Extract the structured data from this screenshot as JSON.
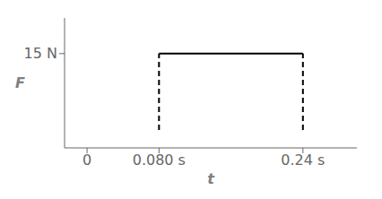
{
  "chart_data": {
    "type": "line",
    "title": "",
    "xlabel": "t",
    "ylabel": "F",
    "series": [
      {
        "x": [
          0.08,
          0.24
        ],
        "values": [
          15,
          15
        ],
        "color": "#000000",
        "line_style": "solid"
      },
      {
        "x": [
          0.08,
          0.08
        ],
        "values": [
          0,
          15
        ],
        "color": "#000000",
        "line_style": "dashed"
      },
      {
        "x": [
          0.24,
          0.24
        ],
        "values": [
          0,
          15
        ],
        "color": "#000000",
        "line_style": "dashed"
      }
    ],
    "xlim": [
      -0.025,
      0.3
    ],
    "ylim": [
      -3.5,
      22
    ],
    "xticks": [
      0,
      {
        "value": 0.08,
        "label": "0.080 s"
      },
      {
        "value": 0.24,
        "label": "0.24 s"
      }
    ],
    "yticks": [
      {
        "value": 15,
        "label": "15 N"
      }
    ],
    "grid": false
  }
}
